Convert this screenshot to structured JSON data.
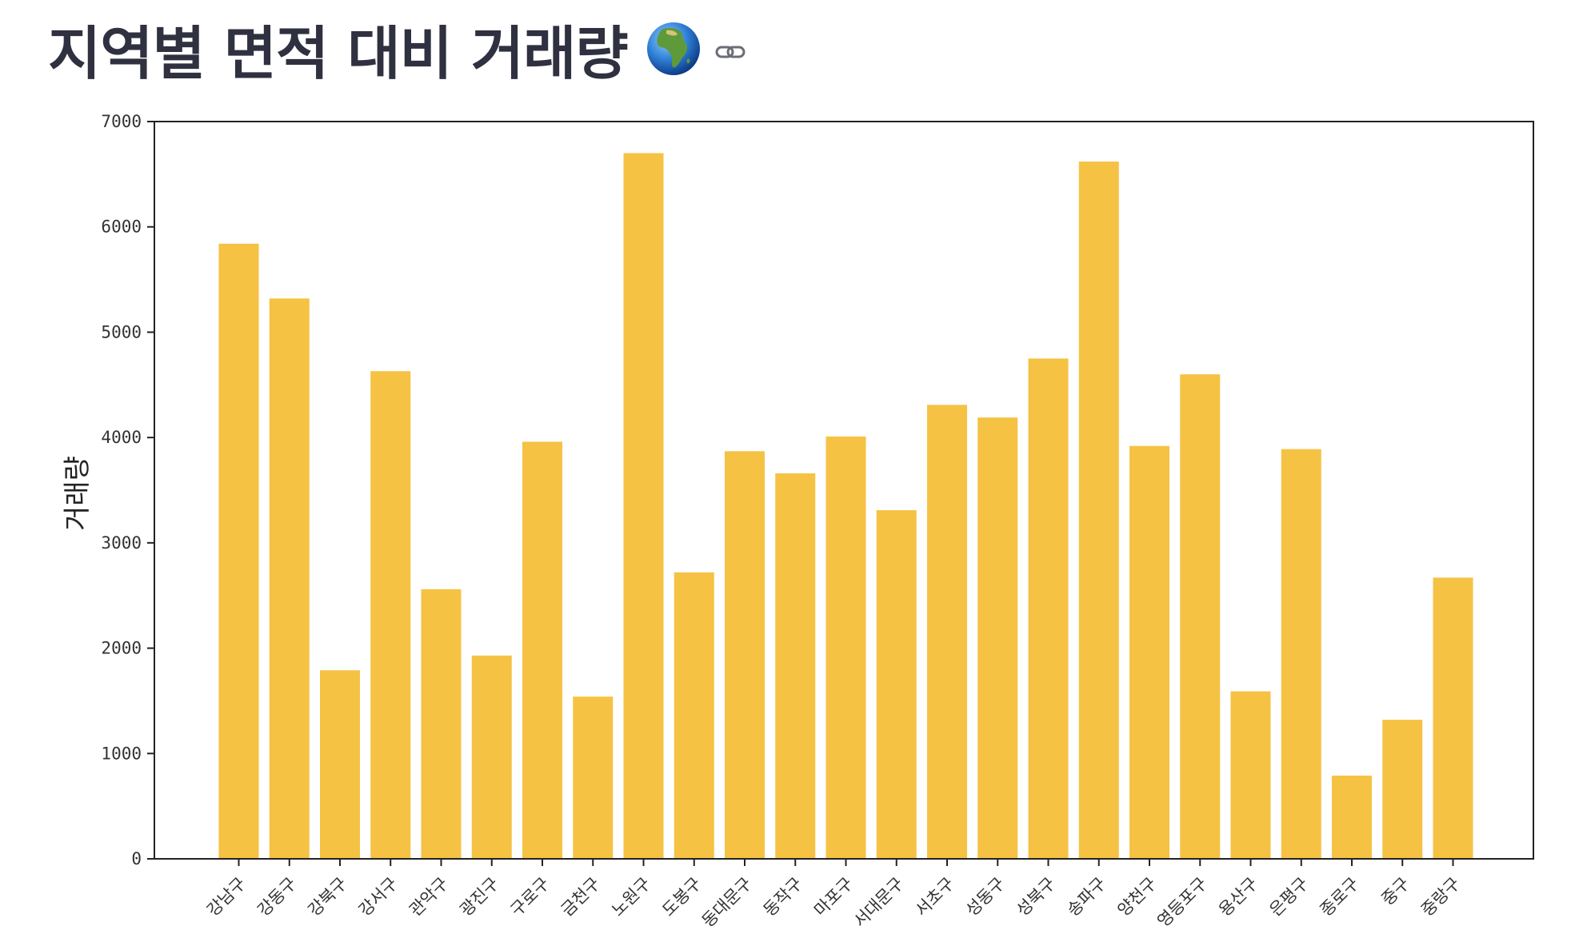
{
  "page": {
    "title": "지역별 면적 대비 거래량",
    "icons": [
      "globe-africa-icon",
      "link-icon"
    ]
  },
  "chart_data": {
    "type": "bar",
    "title": "",
    "xlabel": "",
    "ylabel": "거래량",
    "ylim": [
      0,
      7000
    ],
    "yticks": [
      0,
      1000,
      2000,
      3000,
      4000,
      5000,
      6000,
      7000
    ],
    "bar_color": "#f5c244",
    "categories": [
      "강남구",
      "강동구",
      "강북구",
      "강서구",
      "관악구",
      "광진구",
      "구로구",
      "금천구",
      "노원구",
      "도봉구",
      "동대문구",
      "동작구",
      "마포구",
      "서대문구",
      "서초구",
      "성동구",
      "성북구",
      "송파구",
      "양천구",
      "영등포구",
      "용산구",
      "은평구",
      "종로구",
      "중구",
      "중랑구"
    ],
    "values": [
      5840,
      5320,
      1790,
      4630,
      2560,
      1930,
      3960,
      1540,
      6700,
      2720,
      3870,
      3660,
      4010,
      3310,
      4310,
      4190,
      4750,
      6620,
      3920,
      4600,
      1590,
      3890,
      790,
      1320,
      2670
    ],
    "grid": false,
    "legend": "none"
  }
}
